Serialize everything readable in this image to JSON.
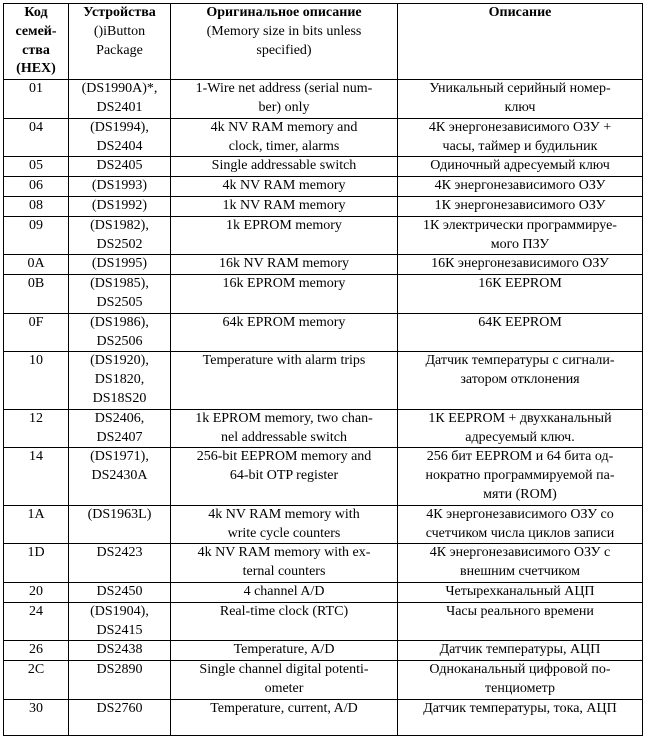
{
  "table": {
    "headers": [
      {
        "lines": [
          "Код",
          "семей-",
          "ства",
          "(HEX)"
        ],
        "bold_lines": 4
      },
      {
        "lines": [
          "Устройства",
          "()iButton",
          "Package"
        ],
        "bold_lines": 1
      },
      {
        "lines": [
          "Оригинальное описание",
          "(Memory size in bits unless",
          "specified)"
        ],
        "bold_lines": 1
      },
      {
        "lines": [
          "Описание"
        ],
        "bold_lines": 1
      }
    ],
    "rows": [
      [
        [
          "01"
        ],
        [
          "(DS1990A)*,",
          "DS2401"
        ],
        [
          "1-Wire net address (serial num-",
          "ber) only"
        ],
        [
          "Уникальный серийный номер-",
          "ключ"
        ]
      ],
      [
        [
          "04"
        ],
        [
          "(DS1994),",
          "DS2404"
        ],
        [
          "4k NV RAM memory and",
          "clock, timer, alarms"
        ],
        [
          "4К энергонезависимого ОЗУ +",
          "часы, таймер и будильник"
        ]
      ],
      [
        [
          "05"
        ],
        [
          "DS2405"
        ],
        [
          "Single addressable switch"
        ],
        [
          "Одиночный адресуемый ключ"
        ]
      ],
      [
        [
          "06"
        ],
        [
          "(DS1993)"
        ],
        [
          "4k NV RAM memory"
        ],
        [
          "4К энергонезависимого ОЗУ"
        ]
      ],
      [
        [
          "08"
        ],
        [
          "(DS1992)"
        ],
        [
          "1k NV RAM memory"
        ],
        [
          "1К энергонезависимого ОЗУ"
        ]
      ],
      [
        [
          "09"
        ],
        [
          "(DS1982),",
          "DS2502"
        ],
        [
          "1k EPROM memory"
        ],
        [
          "1К электрически программируе-",
          "мого ПЗУ"
        ]
      ],
      [
        [
          "0A"
        ],
        [
          "(DS1995)"
        ],
        [
          "16k NV RAM memory"
        ],
        [
          "16К энергонезависимого ОЗУ"
        ]
      ],
      [
        [
          "0B"
        ],
        [
          "(DS1985),",
          "DS2505"
        ],
        [
          "16k EPROM memory"
        ],
        [
          "16К EEPROM"
        ]
      ],
      [
        [
          "0F"
        ],
        [
          "(DS1986),",
          "DS2506"
        ],
        [
          "64k EPROM memory"
        ],
        [
          "64К EEPROM"
        ]
      ],
      [
        [
          "10"
        ],
        [
          "(DS1920),",
          "DS1820,",
          "DS18S20"
        ],
        [
          "Temperature with alarm trips"
        ],
        [
          "Датчик температуры с сигнали-",
          "затором отклонения"
        ]
      ],
      [
        [
          "12"
        ],
        [
          "DS2406,",
          "DS2407"
        ],
        [
          "1k EPROM memory, two chan-",
          "nel addressable switch"
        ],
        [
          "1К EEPROM + двухканальный",
          "адресуемый ключ."
        ]
      ],
      [
        [
          "14"
        ],
        [
          "(DS1971),",
          "DS2430A"
        ],
        [
          "256-bit EEPROM memory and",
          "64-bit OTP register"
        ],
        [
          "256 бит EEPROM и 64 бита од-",
          "нократно программируемой па-",
          "мяти (ROM)"
        ]
      ],
      [
        [
          "1A"
        ],
        [
          "(DS1963L)"
        ],
        [
          "4k NV RAM memory with",
          "write cycle counters"
        ],
        [
          "4К энергонезависимого ОЗУ со",
          "счетчиком числа циклов записи"
        ]
      ],
      [
        [
          "1D"
        ],
        [
          "DS2423"
        ],
        [
          "4k NV RAM memory with ex-",
          "ternal counters"
        ],
        [
          "4К энергонезависимого ОЗУ с",
          "внешним счетчиком"
        ]
      ],
      [
        [
          "20"
        ],
        [
          "DS2450"
        ],
        [
          "4 channel A/D"
        ],
        [
          "Четырехканальный АЦП"
        ]
      ],
      [
        [
          "24"
        ],
        [
          "(DS1904),",
          "DS2415"
        ],
        [
          "Real-time clock (RTC)"
        ],
        [
          "Часы реального времени"
        ]
      ],
      [
        [
          "26"
        ],
        [
          "DS2438"
        ],
        [
          "Temperature, A/D"
        ],
        [
          "Датчик температуры, АЦП"
        ]
      ],
      [
        [
          "2C"
        ],
        [
          "DS2890"
        ],
        [
          "Single channel digital potenti-",
          "ometer"
        ],
        [
          "Одноканальный цифровой по-",
          "тенциометр"
        ]
      ],
      [
        [
          "30"
        ],
        [
          "DS2760"
        ],
        [
          "Temperature, current, A/D"
        ],
        [
          "Датчик температуры, тока, АЦП"
        ]
      ]
    ]
  }
}
